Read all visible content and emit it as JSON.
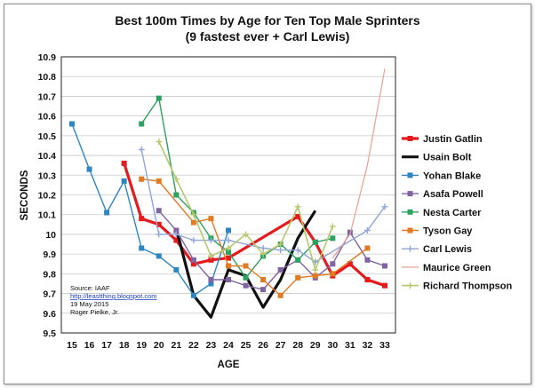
{
  "chart_data": {
    "type": "line",
    "title": "Best 100m Times by Age for Ten Top Male Sprinters",
    "subtitle": "(9 fastest ever + Carl Lewis)",
    "xlabel": "AGE",
    "ylabel": "SECONDS",
    "x": [
      15,
      16,
      17,
      18,
      19,
      20,
      21,
      22,
      23,
      24,
      25,
      26,
      27,
      28,
      29,
      30,
      31,
      32,
      33
    ],
    "xlim": [
      15,
      33
    ],
    "ylim": [
      9.5,
      10.9
    ],
    "yticks": [
      "9.5",
      "9.6",
      "9.7",
      "9.8",
      "9.9",
      "10",
      "10.1",
      "10.2",
      "10.3",
      "10.4",
      "10.5",
      "10.6",
      "10.7",
      "10.8",
      "10.9"
    ],
    "grid": true,
    "legend_position": "right",
    "source_lines": [
      "Source: IAAF",
      "http://leastthing.blogspot.com",
      "19 May 2015",
      "Roger Pielke, Jr."
    ],
    "series": [
      {
        "name": "Justin Gatlin",
        "color": "#e41a1c",
        "marker": "square",
        "width": 3.2,
        "points": [
          [
            18,
            10.36
          ],
          [
            19,
            10.08
          ],
          [
            20,
            10.05
          ],
          [
            21,
            9.97
          ],
          [
            22,
            9.85
          ],
          [
            23,
            9.87
          ],
          [
            24,
            9.88
          ],
          [
            28,
            10.09
          ],
          [
            29,
            9.96
          ],
          [
            30,
            9.79
          ],
          [
            31,
            9.85
          ],
          [
            32,
            9.77
          ],
          [
            33,
            9.74
          ]
        ]
      },
      {
        "name": "Usain Bolt",
        "color": "#111111",
        "marker": "none",
        "width": 3.2,
        "points": [
          [
            21,
            10.03
          ],
          [
            22,
            9.69
          ],
          [
            23,
            9.58
          ],
          [
            24,
            9.82
          ],
          [
            25,
            9.79
          ],
          [
            26,
            9.63
          ],
          [
            27,
            9.77
          ],
          [
            28,
            9.98
          ],
          [
            29,
            10.12
          ]
        ]
      },
      {
        "name": "Yohan Blake",
        "color": "#2e86c1",
        "marker": "square",
        "width": 1.4,
        "points": [
          [
            15,
            10.56
          ],
          [
            16,
            10.33
          ],
          [
            17,
            10.11
          ],
          [
            18,
            10.27
          ],
          [
            19,
            9.93
          ],
          [
            20,
            9.89
          ],
          [
            21,
            9.82
          ],
          [
            22,
            9.69
          ],
          [
            23,
            9.75
          ],
          [
            24,
            10.02
          ]
        ]
      },
      {
        "name": "Asafa Powell",
        "color": "#8064a2",
        "marker": "square",
        "width": 1.4,
        "points": [
          [
            20,
            10.12
          ],
          [
            21,
            10.02
          ],
          [
            22,
            9.87
          ],
          [
            23,
            9.77
          ],
          [
            24,
            9.77
          ],
          [
            25,
            9.74
          ],
          [
            26,
            9.72
          ],
          [
            27,
            9.82
          ],
          [
            28,
            9.87
          ],
          [
            29,
            9.78
          ],
          [
            30,
            9.85
          ],
          [
            31,
            10.01
          ],
          [
            32,
            9.87
          ],
          [
            33,
            9.84
          ]
        ]
      },
      {
        "name": "Nesta Carter",
        "color": "#2ca25f",
        "marker": "square",
        "width": 1.4,
        "points": [
          [
            19,
            10.56
          ],
          [
            20,
            10.69
          ],
          [
            21,
            10.2
          ],
          [
            22,
            10.11
          ],
          [
            23,
            9.98
          ],
          [
            24,
            9.91
          ],
          [
            25,
            9.78
          ],
          [
            26,
            9.89
          ],
          [
            27,
            9.95
          ],
          [
            28,
            9.87
          ],
          [
            29,
            9.96
          ],
          [
            30,
            9.98
          ]
        ]
      },
      {
        "name": "Tyson Gay",
        "color": "#e07b24",
        "marker": "square",
        "width": 1.4,
        "points": [
          [
            19,
            10.28
          ],
          [
            20,
            10.27
          ],
          [
            22,
            10.06
          ],
          [
            23,
            10.08
          ],
          [
            24,
            9.84
          ],
          [
            25,
            9.84
          ],
          [
            26,
            9.77
          ],
          [
            27,
            9.69
          ],
          [
            28,
            9.78
          ],
          [
            29,
            9.79
          ],
          [
            30,
            9.8
          ],
          [
            32,
            9.93
          ]
        ]
      },
      {
        "name": "Carl Lewis",
        "color": "#8fa6d6",
        "marker": "plus",
        "width": 1.4,
        "points": [
          [
            19,
            10.43
          ],
          [
            20,
            10.0
          ],
          [
            21,
            10.0
          ],
          [
            22,
            9.97
          ],
          [
            23,
            9.97
          ],
          [
            24,
            9.97
          ],
          [
            26,
            9.93
          ],
          [
            27,
            9.92
          ],
          [
            28,
            9.92
          ],
          [
            29,
            9.86
          ],
          [
            32,
            10.02
          ],
          [
            33,
            10.14
          ]
        ]
      },
      {
        "name": "Maurice Green",
        "color": "#e8a090",
        "marker": "none",
        "width": 1.2,
        "points": [
          [
            30,
            9.88
          ],
          [
            31,
            10.0
          ],
          [
            32,
            10.35
          ],
          [
            33,
            10.84
          ]
        ]
      },
      {
        "name": "Richard Thompson",
        "color": "#b5c86d",
        "marker": "plus",
        "width": 1.6,
        "points": [
          [
            20,
            10.47
          ],
          [
            21,
            10.28
          ],
          [
            22,
            10.1
          ],
          [
            23,
            9.89
          ],
          [
            24,
            9.93
          ],
          [
            25,
            10.0
          ],
          [
            26,
            9.9
          ],
          [
            27,
            9.95
          ],
          [
            28,
            10.14
          ],
          [
            29,
            9.82
          ],
          [
            30,
            10.04
          ]
        ]
      }
    ]
  }
}
